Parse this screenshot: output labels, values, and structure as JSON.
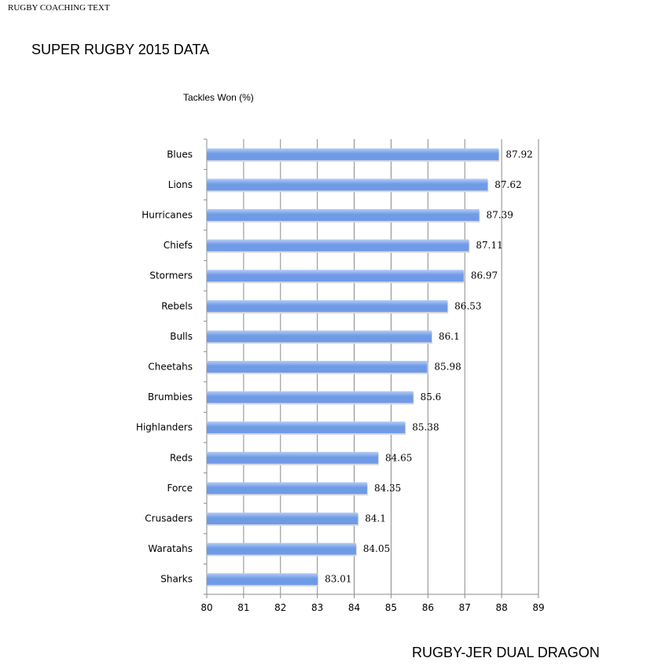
{
  "header": {
    "text": "RUGBY COACHING TEXT"
  },
  "footer": {
    "text": "RUGBY-JER DUAL DRAGON"
  },
  "chart_data": {
    "type": "bar",
    "orientation": "horizontal",
    "title": "SUPER RUGBY 2015  DATA",
    "series_title": "Tackles Won (%)",
    "categories": [
      "Blues",
      "Lions",
      "Hurricanes",
      "Chiefs",
      "Stormers",
      "Rebels",
      "Bulls",
      "Cheetahs",
      "Brumbies",
      "Highlanders",
      "Reds",
      "Force",
      "Crusaders",
      "Waratahs",
      "Sharks"
    ],
    "values": [
      87.92,
      87.62,
      87.39,
      87.11,
      86.97,
      86.53,
      86.1,
      85.98,
      85.6,
      85.38,
      84.65,
      84.35,
      84.1,
      84.05,
      83.01
    ],
    "value_labels": [
      "87.92",
      "87.62",
      "87.39",
      "87.11",
      "86.97",
      "86.53",
      "86.1",
      "85.98",
      "85.6",
      "85.38",
      "84.65",
      "84.35",
      "84.1",
      "84.05",
      "83.01"
    ],
    "xlim": [
      80,
      89
    ],
    "xticks": [
      "80",
      "81",
      "82",
      "83",
      "84",
      "85",
      "86",
      "87",
      "88",
      "89"
    ],
    "grid": true,
    "bar_color": "#6f9ae6",
    "bar_color_light": "#b4cdf6"
  }
}
